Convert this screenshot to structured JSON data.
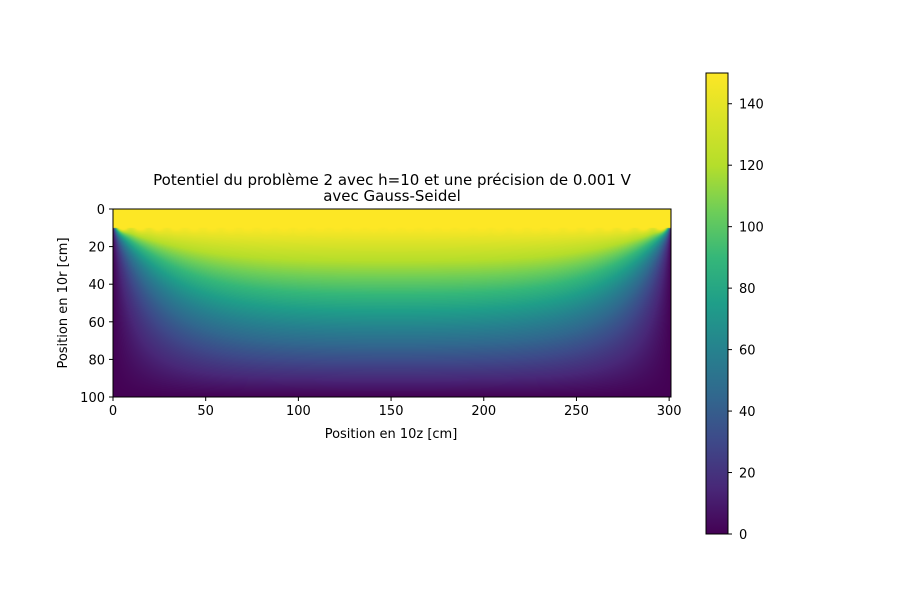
{
  "chart_data": {
    "type": "heatmap",
    "title_lines": [
      "Potentiel du problème 2 avec h=10 et une précision de 0.001 V",
      "avec Gauss-Seidel"
    ],
    "xlabel": "Position en 10z [cm]",
    "ylabel": "Position en 10r [cm]",
    "xlim": [
      0,
      301
    ],
    "ylim": [
      100,
      0
    ],
    "y_inverted": true,
    "x_ticks": [
      0,
      50,
      100,
      150,
      200,
      250,
      300
    ],
    "y_ticks": [
      0,
      20,
      40,
      60,
      80,
      100
    ],
    "colorbar": {
      "colormap": "viridis",
      "range": [
        0,
        150
      ],
      "ticks": [
        0,
        20,
        40,
        60,
        80,
        100,
        120,
        140
      ],
      "placement": "right"
    },
    "field": {
      "description_values": "potential V(r,z)",
      "top_band_rows": [
        0,
        10
      ],
      "top_band_value": 150,
      "boundary_value": 0
    },
    "grid": false
  }
}
